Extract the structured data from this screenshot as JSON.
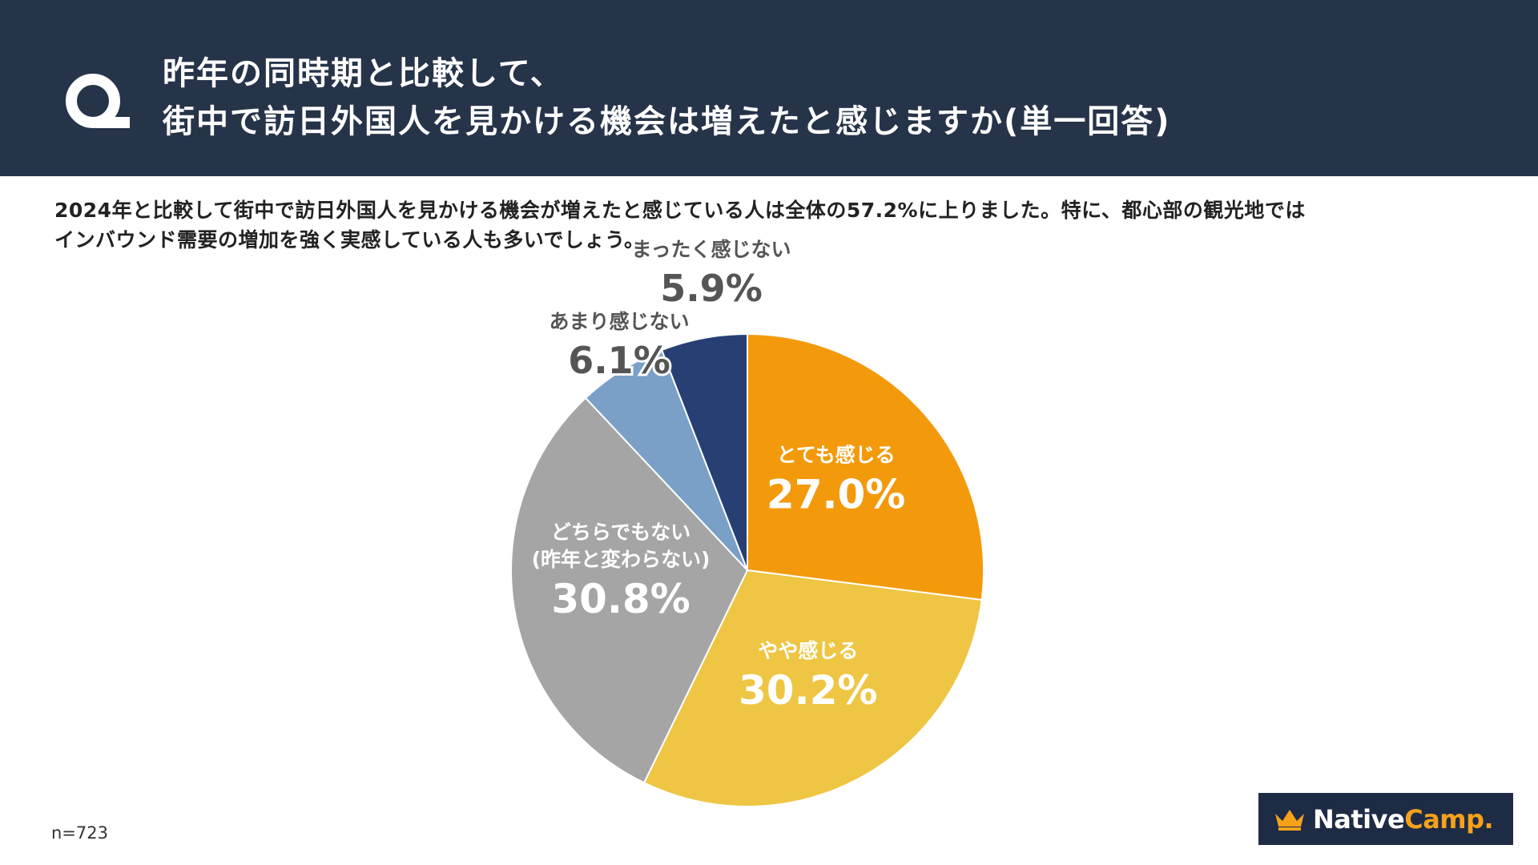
{
  "header": {
    "question_line1": "昨年の同時期と比較して、",
    "question_line2": "街中で訪日外国人を見かける機会は増えたと感じますか(単一回答)"
  },
  "description": {
    "line1": "2024年と比較して街中で訪日外国人を見かける機会が増えたと感じている人は全体の57.2%に上りました。特に、都心部の観光地では",
    "line2": "インバウンド需要の増加を強く実感している人も多いでしょう。"
  },
  "chart_data": {
    "type": "pie",
    "title": "昨年の同時期と比較して、街中で訪日外国人を見かける機会は増えたと感じますか(単一回答)",
    "start": "top, clockwise",
    "slices": [
      {
        "label": "とても感じる",
        "value": 27.0,
        "display": "27.0%",
        "color": "#f39a0c",
        "label_color": "#ffffff"
      },
      {
        "label": "やや感じる",
        "value": 30.2,
        "display": "30.2%",
        "color": "#eec644",
        "label_color": "#ffffff"
      },
      {
        "label": "どちらでもない",
        "label2": "(昨年と変わらない)",
        "value": 30.8,
        "display": "30.8%",
        "color": "#a5a5a5",
        "label_color": "#ffffff"
      },
      {
        "label": "あまり感じない",
        "value": 6.1,
        "display": "6.1%",
        "color": "#7aa0c8",
        "label_color": "#555555"
      },
      {
        "label": "まったく感じない",
        "value": 5.9,
        "display": "5.9%",
        "color": "#273f73",
        "label_color": "#555555"
      }
    ]
  },
  "footer": {
    "sample_size": "n=723",
    "logo_brand": "Native",
    "logo_accent": "Camp.",
    "logo_icon": "crown-icon"
  },
  "colors": {
    "header_bg": "#26344a",
    "logo_bg": "#1e2b45",
    "logo_accent": "#f5a21a"
  }
}
